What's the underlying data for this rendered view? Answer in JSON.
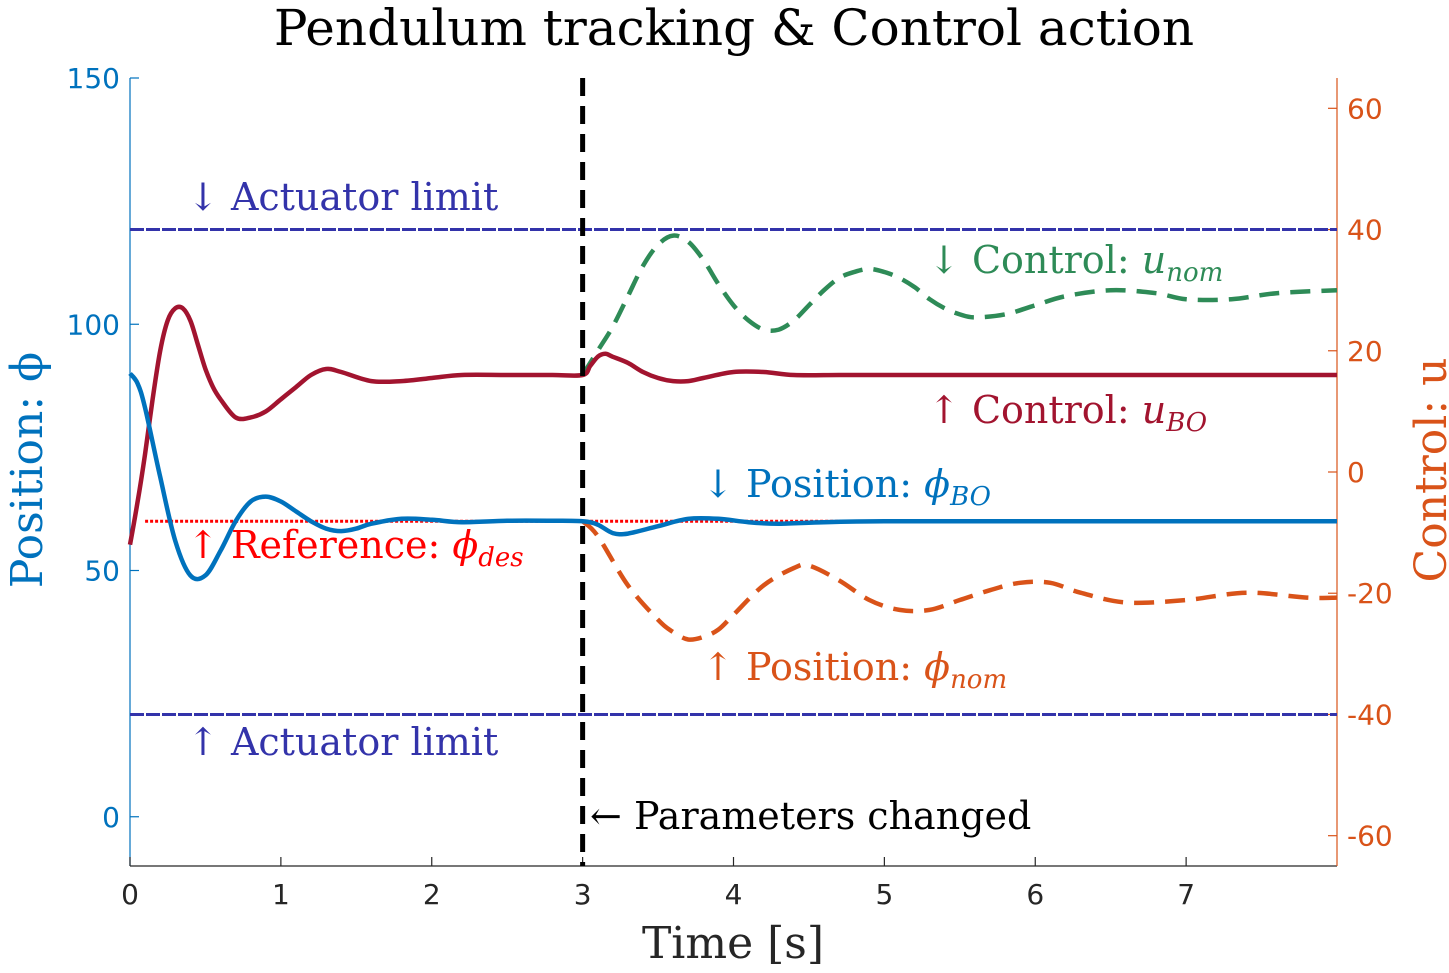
{
  "chart_data": {
    "type": "line",
    "title": "Pendulum tracking & Control action",
    "xlabel": "Time [s]",
    "ylabel_left": "Position: ϕ",
    "ylabel_right": "Control: u",
    "xlim": [
      0,
      8
    ],
    "ylim_left": [
      -10,
      150
    ],
    "ylim_right": [
      -65,
      65
    ],
    "x_ticks": [
      0,
      1,
      2,
      3,
      4,
      5,
      6,
      7
    ],
    "x_tick_labels": [
      "0",
      "1",
      "2",
      "3",
      "4",
      "5",
      "6",
      "7"
    ],
    "y_ticks_left": [
      0,
      50,
      100,
      150
    ],
    "y_tick_labels_left": [
      "0",
      "50",
      "100",
      "150"
    ],
    "y_ticks_right": [
      -60,
      -40,
      -20,
      0,
      20,
      40,
      60
    ],
    "y_tick_labels_right": [
      "-60",
      "-40",
      "-20",
      "0",
      "20",
      "40",
      "60"
    ],
    "colors": {
      "left_axis": "#0072BD",
      "right_axis": "#D95319",
      "phi_bo": "#0072BD",
      "phi_nom": "#D95319",
      "u_bo": "#A2142F",
      "u_nom": "#2E8B57",
      "reference": "#FF0000",
      "actuator": "#3333AA",
      "event": "#000000"
    },
    "series": [
      {
        "name": "Position: phi_BO",
        "axis": "left",
        "style": "solid",
        "x": [
          0,
          0.05,
          0.1,
          0.2,
          0.3,
          0.4,
          0.5,
          0.6,
          0.7,
          0.8,
          0.9,
          1.0,
          1.1,
          1.2,
          1.3,
          1.4,
          1.5,
          1.6,
          1.8,
          2.0,
          2.2,
          2.5,
          2.8,
          3.0,
          3.1,
          3.2,
          3.3,
          3.5,
          3.7,
          3.9,
          4.1,
          4.3,
          4.6,
          5.0,
          5.5,
          6.0,
          7.0,
          8.0
        ],
        "y": [
          90,
          88,
          83,
          69,
          56,
          49,
          49,
          54,
          60,
          64,
          65,
          64,
          62,
          60,
          58.5,
          58,
          58.5,
          59.5,
          60.5,
          60.3,
          59.8,
          60.1,
          60.1,
          60,
          59.3,
          57.6,
          57.5,
          59,
          60.5,
          60.5,
          59.8,
          59.5,
          59.8,
          60,
          60,
          60,
          60,
          60
        ]
      },
      {
        "name": "Position: phi_nom",
        "axis": "left",
        "style": "dashed",
        "x": [
          3.0,
          3.1,
          3.3,
          3.5,
          3.6,
          3.7,
          3.8,
          3.9,
          4.0,
          4.2,
          4.4,
          4.5,
          4.7,
          4.9,
          5.1,
          5.3,
          5.5,
          5.7,
          5.9,
          6.1,
          6.3,
          6.6,
          7.0,
          7.4,
          7.8,
          8.0
        ],
        "y": [
          60,
          57,
          47,
          40,
          37.5,
          36,
          36.5,
          38,
          41,
          47,
          50.5,
          51,
          48,
          44,
          42,
          42,
          44,
          46,
          47.5,
          47.5,
          45.5,
          43.5,
          44,
          45.5,
          44.5,
          44.5
        ]
      },
      {
        "name": "Control: u_BO",
        "axis": "right",
        "style": "solid",
        "x": [
          0,
          0.05,
          0.1,
          0.15,
          0.2,
          0.25,
          0.3,
          0.35,
          0.4,
          0.45,
          0.5,
          0.55,
          0.6,
          0.7,
          0.8,
          0.9,
          1.0,
          1.1,
          1.2,
          1.3,
          1.4,
          1.6,
          1.8,
          2.0,
          2.2,
          2.5,
          2.8,
          3.0,
          3.05,
          3.1,
          3.15,
          3.2,
          3.3,
          3.4,
          3.5,
          3.6,
          3.7,
          3.8,
          4.0,
          4.2,
          4.4,
          4.7,
          5.0,
          5.5,
          6.0,
          7.0,
          8.0
        ],
        "y": [
          -12,
          -5,
          3,
          12,
          20,
          25,
          27,
          27,
          25,
          21,
          17,
          14,
          12,
          9,
          9,
          10,
          12,
          14,
          16,
          17,
          16.5,
          15,
          15,
          15.5,
          16,
          16,
          16,
          16,
          17.5,
          19,
          19.5,
          19,
          18,
          16.5,
          15.5,
          15,
          15,
          15.5,
          16.5,
          16.5,
          16,
          16,
          16,
          16,
          16,
          16,
          16
        ]
      },
      {
        "name": "Control: u_nom",
        "axis": "right",
        "style": "dashed",
        "x": [
          3.0,
          3.1,
          3.2,
          3.3,
          3.4,
          3.5,
          3.6,
          3.7,
          3.8,
          3.9,
          4.0,
          4.1,
          4.2,
          4.3,
          4.4,
          4.5,
          4.6,
          4.7,
          4.8,
          4.9,
          5.0,
          5.1,
          5.2,
          5.3,
          5.4,
          5.5,
          5.6,
          5.8,
          6.0,
          6.2,
          6.5,
          6.8,
          7.0,
          7.3,
          7.6,
          8.0
        ],
        "y": [
          16,
          20,
          24,
          29,
          34,
          37.5,
          39,
          38,
          35,
          31,
          27.5,
          25,
          23.5,
          23.5,
          25,
          27.5,
          30,
          32,
          33,
          33.5,
          33,
          32,
          30.5,
          28.5,
          27,
          26,
          25.5,
          26,
          27.5,
          29,
          30,
          29.5,
          28.5,
          28.5,
          29.5,
          30
        ]
      },
      {
        "name": "Reference: phi_des",
        "axis": "left",
        "style": "dotted",
        "x": [
          0.1,
          8.0
        ],
        "y": [
          60,
          60
        ]
      }
    ],
    "hlines": [
      {
        "name": "Actuator limit (upper)",
        "axis": "right",
        "value": 40
      },
      {
        "name": "Actuator limit (lower)",
        "axis": "right",
        "value": -40
      }
    ],
    "vlines": [
      {
        "name": "Parameters changed",
        "x": 3.0
      }
    ],
    "annotations": {
      "actuator_upper": {
        "arrow": "↓",
        "text": "Actuator limit"
      },
      "actuator_lower": {
        "arrow": "↑",
        "text": "Actuator limit"
      },
      "u_nom": {
        "arrow": "↓",
        "text": "Control: ",
        "sym": "u",
        "sub": "nom"
      },
      "u_bo": {
        "arrow": "↑",
        "text": "Control: ",
        "sym": "u",
        "sub": "BO"
      },
      "phi_bo": {
        "arrow": "↓",
        "text": "Position: ",
        "sym": "ϕ",
        "sub": "BO"
      },
      "phi_des": {
        "arrow": "↑",
        "text": "Reference: ",
        "sym": "ϕ",
        "sub": "des"
      },
      "phi_nom": {
        "arrow": "↑",
        "text": "Position: ",
        "sym": "ϕ",
        "sub": "nom"
      },
      "params": {
        "arrow": "←",
        "text": "Parameters changed"
      }
    }
  }
}
